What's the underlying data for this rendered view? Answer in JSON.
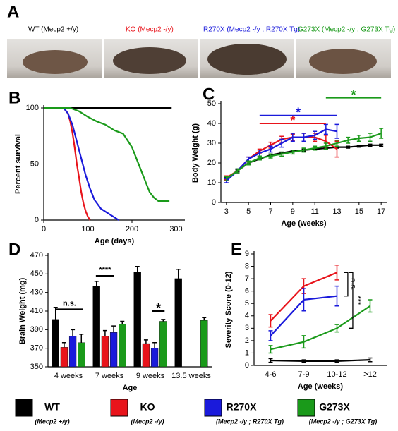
{
  "panel_a": {
    "panel": "A",
    "labels": [
      "WT (Mecp2 +/y)",
      "KO (Mecp2 -/y)",
      "R270X (Mecp2 -/y ; R270X Tg)",
      "G273X (Mecp2 -/y ; G273X Tg)"
    ]
  },
  "chart_data": [
    {
      "panel": "B",
      "type": "line",
      "xlabel": "Age (days)",
      "ylabel": "Percent survival",
      "xlim": [
        0,
        320
      ],
      "xticks": [
        0,
        100,
        200,
        300
      ],
      "ylim": [
        0,
        100
      ],
      "yticks": [
        0,
        50,
        100
      ],
      "series": [
        {
          "name": "WT",
          "color": "#000000",
          "x": [
            0,
            290
          ],
          "values": [
            100,
            100
          ]
        },
        {
          "name": "KO",
          "color": "#e8141b",
          "x": [
            0,
            45,
            55,
            60,
            65,
            70,
            75,
            80,
            85,
            90,
            95,
            100,
            105
          ],
          "values": [
            100,
            100,
            95,
            88,
            78,
            65,
            50,
            38,
            25,
            15,
            8,
            3,
            0
          ]
        },
        {
          "name": "R270X",
          "color": "#1a1adb",
          "x": [
            0,
            45,
            55,
            65,
            75,
            85,
            95,
            105,
            115,
            130,
            150,
            170
          ],
          "values": [
            100,
            100,
            95,
            85,
            70,
            55,
            40,
            28,
            18,
            10,
            5,
            0
          ]
        },
        {
          "name": "G273X",
          "color": "#1a9a1a",
          "x": [
            0,
            60,
            80,
            100,
            120,
            140,
            160,
            180,
            200,
            210,
            220,
            230,
            240,
            250,
            260,
            285
          ],
          "values": [
            100,
            100,
            97,
            92,
            88,
            85,
            80,
            77,
            65,
            55,
            45,
            35,
            25,
            20,
            17,
            17
          ]
        }
      ]
    },
    {
      "panel": "C",
      "type": "line",
      "xlabel": "Age (weeks)",
      "ylabel": "Body Weight (g)",
      "x": [
        3,
        4,
        5,
        6,
        7,
        8,
        9,
        10,
        11,
        12,
        13,
        14,
        15,
        16,
        17
      ],
      "xlim": [
        2.5,
        17.5
      ],
      "xticks": [
        3,
        5,
        7,
        9,
        11,
        13,
        15,
        17
      ],
      "ylim": [
        0,
        50
      ],
      "yticks": [
        0,
        10,
        20,
        30,
        40,
        50
      ],
      "series": [
        {
          "name": "WT",
          "color": "#000000",
          "values": [
            12,
            16,
            20,
            22,
            24,
            25,
            26,
            26.5,
            27,
            27.5,
            28,
            28,
            28.5,
            29,
            29
          ],
          "errors": [
            0.5,
            0.5,
            0.5,
            0.5,
            0.5,
            0.5,
            0.5,
            0.5,
            0.5,
            0.5,
            0.5,
            0.5,
            0.5,
            0.5,
            0.5
          ]
        },
        {
          "name": "KO",
          "color": "#e8141b",
          "values": [
            12.5,
            16,
            22,
            26,
            29,
            32,
            33,
            33,
            33,
            31,
            27,
            null,
            null,
            null,
            null
          ],
          "errors": [
            1,
            1,
            1,
            1,
            1.5,
            1.5,
            1.5,
            2,
            2,
            3,
            4,
            null,
            null,
            null,
            null
          ]
        },
        {
          "name": "R270X",
          "color": "#1a1adb",
          "values": [
            11,
            16,
            22,
            25,
            27,
            30,
            33,
            33,
            34,
            37,
            36,
            null,
            null,
            null,
            null
          ],
          "errors": [
            1,
            1,
            1,
            1.5,
            1.5,
            2,
            2,
            2,
            2,
            2.5,
            3.5,
            null,
            null,
            null,
            null
          ]
        },
        {
          "name": "G273X",
          "color": "#1a9a1a",
          "values": [
            12,
            16,
            20,
            22.5,
            23.5,
            24.5,
            25.5,
            26.5,
            27.5,
            28.5,
            30,
            31.5,
            32.5,
            33,
            35
          ],
          "errors": [
            1,
            1,
            1,
            1,
            1,
            1,
            1,
            1,
            1,
            1.5,
            1.5,
            1.5,
            1.5,
            2,
            2.5
          ]
        }
      ],
      "annotations": [
        {
          "text": "*",
          "from": 6,
          "to": 13,
          "y": 44,
          "color": "#1a1adb"
        },
        {
          "text": "*",
          "from": 6,
          "to": 12,
          "y": 40,
          "color": "#e8141b"
        },
        {
          "text": "*",
          "from": 12,
          "to": 17,
          "y": 53,
          "color": "#1a9a1a"
        }
      ]
    },
    {
      "panel": "D",
      "type": "bar",
      "xlabel": "Age",
      "ylabel": "Brain Weight (mg)",
      "categories": [
        "4 weeks",
        "7 weeks",
        "9 weeks",
        "13.5 weeks"
      ],
      "ylim": [
        350,
        470
      ],
      "yticks": [
        350,
        370,
        390,
        410,
        430,
        450,
        470
      ],
      "series": [
        {
          "name": "WT",
          "color": "#000000",
          "values": [
            401,
            437,
            452,
            445
          ],
          "errors": [
            13,
            5,
            6,
            10
          ]
        },
        {
          "name": "KO",
          "color": "#e8141b",
          "values": [
            371,
            383,
            375,
            null
          ],
          "errors": [
            5,
            6,
            4,
            null
          ]
        },
        {
          "name": "R270X",
          "color": "#1a1adb",
          "values": [
            383,
            387,
            370,
            null
          ],
          "errors": [
            7,
            7,
            6,
            null
          ]
        },
        {
          "name": "G273X",
          "color": "#1a9a1a",
          "values": [
            376,
            396,
            399,
            400
          ],
          "errors": [
            9,
            3,
            2,
            3
          ]
        }
      ],
      "annotations": [
        {
          "text": "n.s.",
          "from": -0.3,
          "to": 0.35,
          "y": 412
        },
        {
          "text": "****",
          "from": 0.67,
          "to": 1.12,
          "y": 448
        },
        {
          "text": "*",
          "from": 2.05,
          "to": 2.35,
          "y": 410
        }
      ]
    },
    {
      "panel": "E",
      "type": "line",
      "xlabel": "Age (weeks)",
      "ylabel": "Severity Score (0-12)",
      "categories": [
        "4-6",
        "7-9",
        "10-12",
        ">12"
      ],
      "ylim": [
        0,
        9
      ],
      "yticks": [
        0,
        1,
        2,
        3,
        4,
        5,
        6,
        7,
        8,
        9
      ],
      "series": [
        {
          "name": "WT",
          "color": "#000000",
          "values": [
            0.4,
            0.35,
            0.35,
            0.45
          ],
          "errors": [
            0.15,
            0.1,
            0.1,
            0.15
          ]
        },
        {
          "name": "KO",
          "color": "#e8141b",
          "values": [
            3.6,
            6.4,
            7.5,
            null
          ],
          "errors": [
            0.5,
            0.6,
            0.6,
            null
          ]
        },
        {
          "name": "R270X",
          "color": "#1a1adb",
          "values": [
            2.4,
            5.3,
            5.6,
            null
          ],
          "errors": [
            0.4,
            0.9,
            0.8,
            null
          ]
        },
        {
          "name": "G273X",
          "color": "#1a9a1a",
          "values": [
            1.3,
            1.9,
            3.0,
            4.8
          ],
          "errors": [
            0.3,
            0.5,
            0.3,
            0.5
          ]
        }
      ],
      "annotations": [
        {
          "text": "n.s.",
          "x": 2.2,
          "y1": 5.6,
          "y2": 7.5
        },
        {
          "text": "***",
          "x": 2.35,
          "y1": 3.0,
          "y2": 7.5
        }
      ]
    }
  ],
  "legend_genotypes": [
    "(Mecp2 +/y)",
    "(Mecp2 -/y)",
    "(Mecp2 -/y ; R270X Tg)",
    "(Mecp2 -/y ; G273X Tg)"
  ]
}
